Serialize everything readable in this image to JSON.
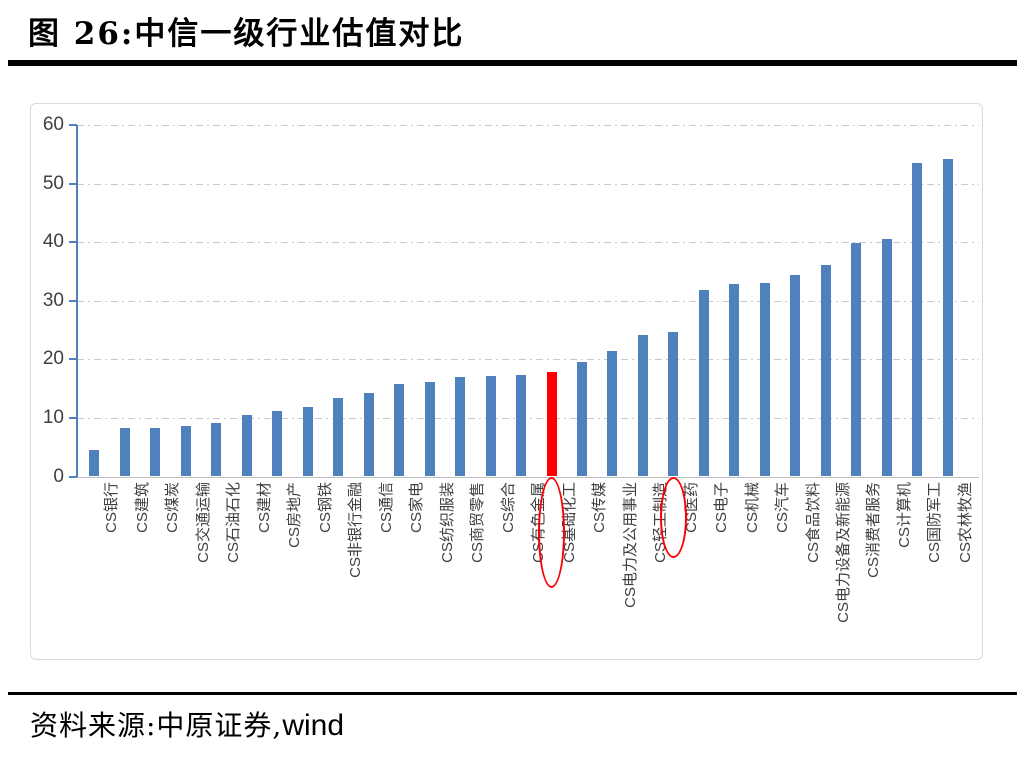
{
  "figure": {
    "title": "图 26:中信一级行业估值对比",
    "source_prefix": "资料来源:中原证券,",
    "source_suffix": "wind"
  },
  "chart_data": {
    "type": "bar",
    "title": "中信一级行业估值对比",
    "categories": [
      "CS银行",
      "CS建筑",
      "CS煤炭",
      "CS交通运输",
      "CS石油石化",
      "CS建材",
      "CS房地产",
      "CS钢铁",
      "CS非银行金融",
      "CS通信",
      "CS家电",
      "CS纺织服装",
      "CS商贸零售",
      "CS综合",
      "CS有色金属",
      "CS基础化工",
      "CS传媒",
      "CS电力及公用事业",
      "CS轻工制造",
      "CS医药",
      "CS电子",
      "CS机械",
      "CS汽车",
      "CS食品饮料",
      "CS电力设备及新能源",
      "CS消费者服务",
      "CS计算机",
      "CS国防军工",
      "CS农林牧渔"
    ],
    "values": [
      4.5,
      8.2,
      8.3,
      8.7,
      9.2,
      10.5,
      11.2,
      11.9,
      13.4,
      14.2,
      15.8,
      16.2,
      16.9,
      17.2,
      17.4,
      17.9,
      19.5,
      21.5,
      24.1,
      24.6,
      31.9,
      32.9,
      33.1,
      34.4,
      36.1,
      39.8,
      40.6,
      53.5,
      54.2
    ],
    "highlight_index": 15,
    "highlighted_category": "CS基础化工",
    "circled_categories": [
      "CS基础化工",
      "CS医药"
    ],
    "xlabel": "",
    "ylabel": "",
    "ylim": [
      0,
      60
    ],
    "yticks": [
      0,
      10,
      20,
      30,
      40,
      50,
      60
    ],
    "grid": "horizontal-dash-dot",
    "legend": "none",
    "label_rotation": -90,
    "bar_color": "#4f81bd",
    "highlight_color": "#fe0000",
    "axis_color": "#4f81bd",
    "annotation_color": "#fe0000"
  }
}
